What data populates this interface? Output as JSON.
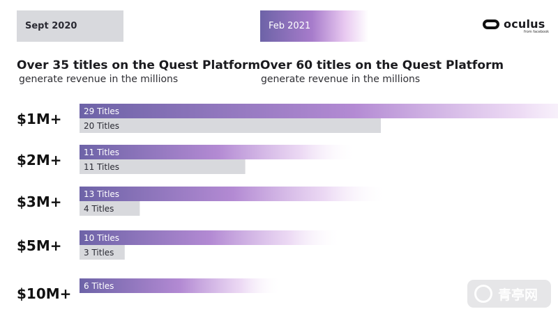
{
  "header": {
    "left_period": "Sept 2020",
    "right_period": "Feb 2021",
    "left_title": "Over 35 titles on the Quest Platform",
    "left_subtitle": "generate revenue in the millions",
    "right_title": "Over 60 titles on the Quest Platform",
    "right_subtitle": "generate revenue in the millions"
  },
  "logo": {
    "word": "oculus",
    "tagline": "from facebook"
  },
  "colors": {
    "feb_gradient_start": "#6d63a7",
    "feb_gradient_mid": "#b38ad3",
    "sept_bar": "#d8d9dd"
  },
  "chart_data": {
    "type": "bar",
    "orientation": "horizontal",
    "categories": [
      "$1M+",
      "$2M+",
      "$3M+",
      "$5M+",
      "$10M+"
    ],
    "series": [
      {
        "name": "Feb 2021",
        "values": [
          29,
          11,
          13,
          10,
          6
        ],
        "labels": [
          "29 Titles",
          "11 Titles",
          "13 Titles",
          "10 Titles",
          "6 Titles"
        ]
      },
      {
        "name": "Sept 2020",
        "values": [
          20,
          11,
          4,
          3,
          null
        ],
        "labels": [
          "20 Titles",
          "11 Titles",
          "4 Titles",
          "3 Titles",
          ""
        ]
      }
    ],
    "grid": false,
    "legend": "none"
  },
  "watermark": {
    "text": "青亭网",
    "icon": "vr-headset-icon"
  }
}
